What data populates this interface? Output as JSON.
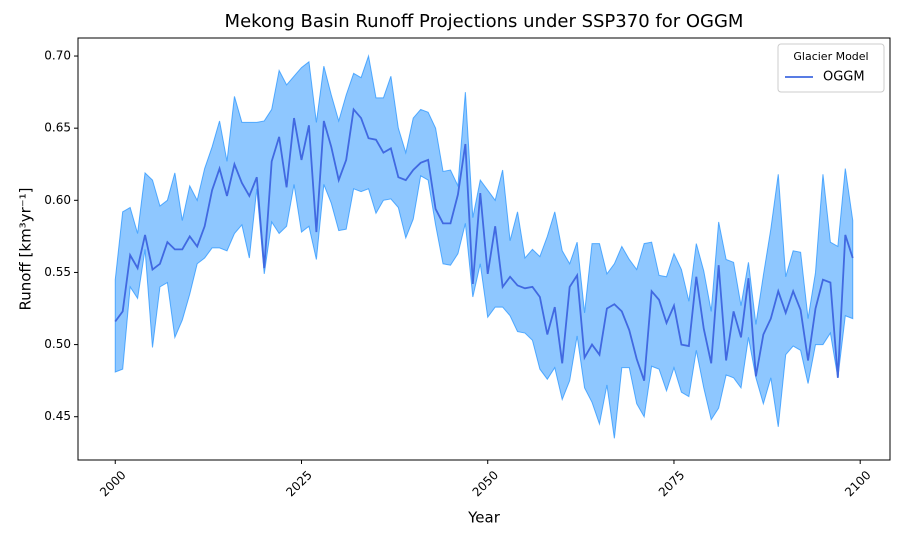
{
  "chart_data": {
    "type": "line",
    "title": "Mekong Basin Runoff Projections under SSP370 for OGGM",
    "x_label": "Year",
    "y_label": "Runoff [km³yr⁻¹]",
    "x": [
      2000,
      2001,
      2002,
      2003,
      2004,
      2005,
      2006,
      2007,
      2008,
      2009,
      2010,
      2011,
      2012,
      2013,
      2014,
      2015,
      2016,
      2017,
      2018,
      2019,
      2020,
      2021,
      2022,
      2023,
      2024,
      2025,
      2026,
      2027,
      2028,
      2029,
      2030,
      2031,
      2032,
      2033,
      2034,
      2035,
      2036,
      2037,
      2038,
      2039,
      2040,
      2041,
      2042,
      2043,
      2044,
      2045,
      2046,
      2047,
      2048,
      2049,
      2050,
      2051,
      2052,
      2053,
      2054,
      2055,
      2056,
      2057,
      2058,
      2059,
      2060,
      2061,
      2062,
      2063,
      2064,
      2065,
      2066,
      2067,
      2068,
      2069,
      2070,
      2071,
      2072,
      2073,
      2074,
      2075,
      2076,
      2077,
      2078,
      2079,
      2080,
      2081,
      2082,
      2083,
      2084,
      2085,
      2086,
      2087,
      2088,
      2089,
      2090,
      2091,
      2092,
      2093,
      2094,
      2095,
      2096,
      2097,
      2098,
      2099
    ],
    "series": [
      {
        "name": "OGGM",
        "color": "#4169e1",
        "values": [
          0.516,
          0.523,
          0.562,
          0.553,
          0.576,
          0.552,
          0.556,
          0.571,
          0.566,
          0.566,
          0.575,
          0.568,
          0.582,
          0.607,
          0.622,
          0.603,
          0.625,
          0.612,
          0.603,
          0.616,
          0.553,
          0.627,
          0.644,
          0.609,
          0.657,
          0.628,
          0.652,
          0.578,
          0.655,
          0.637,
          0.614,
          0.628,
          0.663,
          0.657,
          0.643,
          0.642,
          0.633,
          0.636,
          0.616,
          0.614,
          0.621,
          0.626,
          0.628,
          0.594,
          0.584,
          0.584,
          0.604,
          0.639,
          0.542,
          0.605,
          0.549,
          0.582,
          0.54,
          0.547,
          0.541,
          0.539,
          0.54,
          0.533,
          0.507,
          0.526,
          0.487,
          0.54,
          0.548,
          0.491,
          0.5,
          0.493,
          0.525,
          0.528,
          0.523,
          0.51,
          0.49,
          0.475,
          0.537,
          0.531,
          0.515,
          0.527,
          0.5,
          0.499,
          0.547,
          0.511,
          0.487,
          0.555,
          0.489,
          0.523,
          0.505,
          0.546,
          0.478,
          0.507,
          0.518,
          0.537,
          0.522,
          0.537,
          0.524,
          0.489,
          0.525,
          0.545,
          0.543,
          0.477,
          0.576,
          0.56
        ]
      }
    ],
    "band": {
      "color": "#1e90ff",
      "alpha": 0.5,
      "upper": [
        0.545,
        0.592,
        0.595,
        0.577,
        0.619,
        0.614,
        0.596,
        0.6,
        0.619,
        0.586,
        0.61,
        0.6,
        0.622,
        0.637,
        0.655,
        0.627,
        0.672,
        0.654,
        0.654,
        0.654,
        0.655,
        0.663,
        0.69,
        0.68,
        0.686,
        0.692,
        0.696,
        0.654,
        0.693,
        0.673,
        0.655,
        0.673,
        0.688,
        0.685,
        0.7,
        0.671,
        0.671,
        0.686,
        0.65,
        0.633,
        0.657,
        0.663,
        0.661,
        0.65,
        0.62,
        0.621,
        0.61,
        0.675,
        0.588,
        0.614,
        0.607,
        0.6,
        0.621,
        0.572,
        0.592,
        0.56,
        0.566,
        0.561,
        0.575,
        0.592,
        0.565,
        0.556,
        0.571,
        0.522,
        0.57,
        0.57,
        0.549,
        0.556,
        0.568,
        0.559,
        0.552,
        0.57,
        0.571,
        0.548,
        0.547,
        0.563,
        0.552,
        0.53,
        0.57,
        0.551,
        0.523,
        0.585,
        0.559,
        0.557,
        0.527,
        0.557,
        0.514,
        0.548,
        0.58,
        0.618,
        0.547,
        0.565,
        0.564,
        0.518,
        0.55,
        0.618,
        0.571,
        0.568,
        0.622,
        0.586
      ],
      "lower": [
        0.481,
        0.483,
        0.54,
        0.532,
        0.566,
        0.498,
        0.54,
        0.543,
        0.505,
        0.517,
        0.535,
        0.556,
        0.56,
        0.567,
        0.567,
        0.565,
        0.577,
        0.583,
        0.56,
        0.608,
        0.549,
        0.585,
        0.577,
        0.582,
        0.611,
        0.578,
        0.582,
        0.559,
        0.611,
        0.598,
        0.579,
        0.58,
        0.608,
        0.606,
        0.608,
        0.591,
        0.6,
        0.601,
        0.595,
        0.574,
        0.587,
        0.617,
        0.614,
        0.583,
        0.556,
        0.555,
        0.563,
        0.584,
        0.533,
        0.556,
        0.519,
        0.526,
        0.526,
        0.52,
        0.509,
        0.508,
        0.503,
        0.483,
        0.476,
        0.484,
        0.462,
        0.475,
        0.506,
        0.47,
        0.46,
        0.445,
        0.472,
        0.435,
        0.484,
        0.484,
        0.459,
        0.45,
        0.485,
        0.483,
        0.468,
        0.484,
        0.467,
        0.464,
        0.496,
        0.47,
        0.448,
        0.456,
        0.479,
        0.477,
        0.47,
        0.505,
        0.477,
        0.459,
        0.477,
        0.443,
        0.493,
        0.499,
        0.496,
        0.473,
        0.5,
        0.5,
        0.508,
        0.477,
        0.52,
        0.518
      ]
    },
    "xlim": [
      1995,
      2104
    ],
    "ylim": [
      0.42,
      0.7125
    ],
    "xticks": [
      2000,
      2025,
      2050,
      2075,
      2100
    ],
    "yticks": [
      0.45,
      {
        "value": 0.5,
        "label": "0.50"
      },
      0.55,
      {
        "value": 0.6,
        "label": "0.60"
      },
      0.65,
      {
        "value": 0.7,
        "label": "0.70"
      }
    ],
    "legend": {
      "title": "Glacier Model",
      "position": "upper right"
    }
  }
}
